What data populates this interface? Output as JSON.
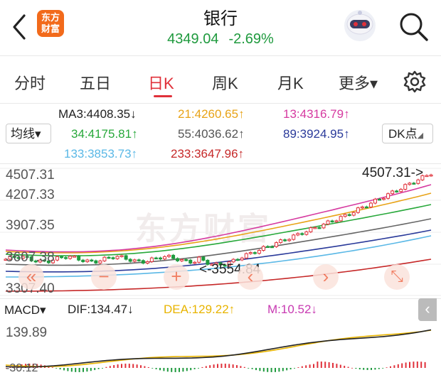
{
  "header": {
    "title": "银行",
    "logo_line1": "东方",
    "logo_line2": "财富",
    "price": "4349.04",
    "change_pct": "-2.69%"
  },
  "tabs": [
    {
      "label": "分时"
    },
    {
      "label": "五日"
    },
    {
      "label": "日K",
      "active": true
    },
    {
      "label": "周K"
    },
    {
      "label": "月K"
    },
    {
      "label": "更多▾"
    }
  ],
  "ma_panel": {
    "avg_button": "均线▾",
    "dk_button": "DK点",
    "ma3": "MA3:4408.35↓",
    "ma21": "21:4260.65↑",
    "ma13": "13:4316.79↑",
    "ma34": "34:4175.81↑",
    "ma55": "55:4036.62↑",
    "ma89": "89:3924.95↑",
    "ma133": "133:3853.73↑",
    "ma233": "233:3647.96↑"
  },
  "colors": {
    "up": "#e0303a",
    "down": "#1f9a3e",
    "ma3": "#222222",
    "ma21": "#e8a317",
    "ma13": "#d63aa0",
    "ma34": "#27a83a",
    "ma55": "#666666",
    "ma89": "#2a3a9a",
    "ma133": "#5ab8e6",
    "ma233": "#c62828",
    "dif": "#222222",
    "dea": "#e8b400",
    "m": "#c83ab2"
  },
  "chart": {
    "y_labels": [
      "4507.31",
      "4207.33",
      "3907.35",
      "3607.38",
      "3307.40"
    ],
    "max_annotation": "4507.31->",
    "min_annotation": "<-3554.84",
    "watermark": "东方财富",
    "controls": [
      "«",
      "−",
      "+",
      "‹",
      "›",
      "⤡"
    ]
  },
  "macd": {
    "label": "MACD▾",
    "dif": "DIF:134.47↓",
    "dea": "DEA:129.22↑",
    "m": "M:10.52↓",
    "y_top": "139.89",
    "y_bottom": "-30.12",
    "collapse": "‹"
  }
}
